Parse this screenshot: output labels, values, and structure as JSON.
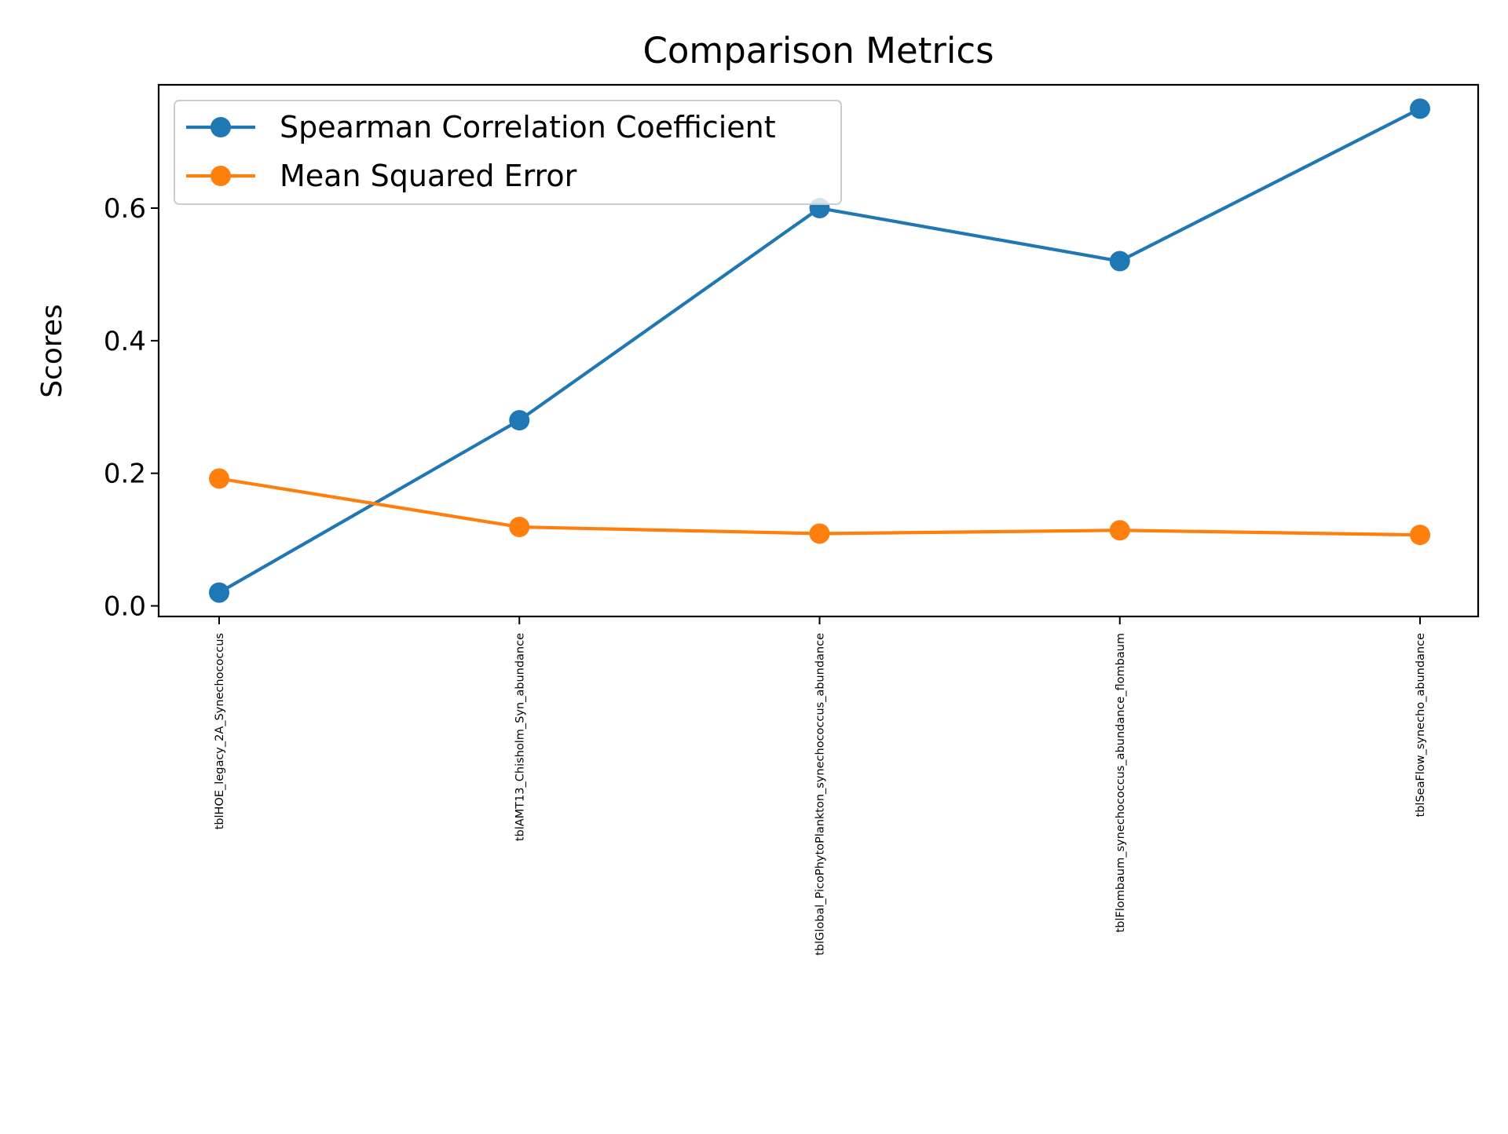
{
  "chart_data": {
    "type": "line",
    "title": "Comparison Metrics",
    "xlabel": "",
    "ylabel": "Scores",
    "categories": [
      "tblHOE_legacy_2A_Synechococcus",
      "tblAMT13_Chisholm_Syn_abundance",
      "tblGlobal_PicoPhytoPlankton_synechococcus_abundance",
      "tblFlombaum_synechococcus_abundance_flombaum",
      "tblSeaFlow_synecho_abundance"
    ],
    "series": [
      {
        "name": "Spearman Correlation Coefficient",
        "color": "#1f77b4",
        "marker": "circle",
        "values": [
          0.02,
          0.28,
          0.6,
          0.52,
          0.75
        ]
      },
      {
        "name": "Mean Squared Error",
        "color": "#ff7f0e",
        "marker": "circle",
        "values": [
          0.192,
          0.119,
          0.109,
          0.114,
          0.107
        ]
      }
    ],
    "ylim": [
      -0.016,
      0.786
    ],
    "yticks": [
      0.0,
      0.2,
      0.4,
      0.6
    ],
    "ytick_labels": [
      "0.0",
      "0.2",
      "0.4",
      "0.6"
    ],
    "grid": false,
    "legend_position": "upper left",
    "xtick_rotation": "vertical"
  }
}
